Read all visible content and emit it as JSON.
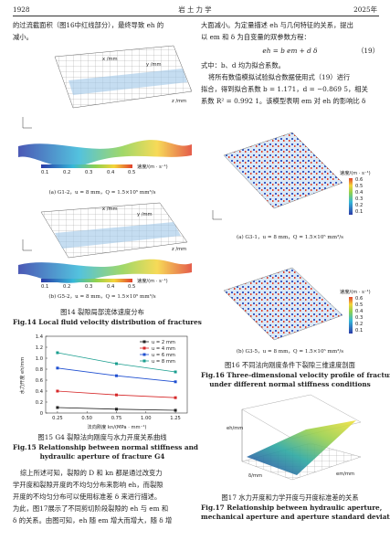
{
  "header": {
    "page": "1928",
    "journal": "岩 土 力 学",
    "year": "2025年"
  },
  "left_text": [
    "的过流截面积（图16中红线部分），最终导致 eh 的",
    "减小。"
  ],
  "fig14": {
    "sub_a": "(a) G1-2，u = 8 mm，Q = 1.5×10⁵ mm³/s",
    "sub_b": "(b) G5-2，u = 8 mm，Q = 1.5×10⁵ mm³/s",
    "axis_x": "x /mm",
    "axis_y": "y /mm",
    "axis_z": "z /mm",
    "colorbar_ticks": [
      "0.1",
      "0.2",
      "0.3",
      "0.4",
      "0.5"
    ],
    "colorbar_label": "速度/(m · s⁻¹)",
    "caption_cn": "图14 裂隙局部流体速度分布",
    "caption_en": "Fig.14 Local fluid velocity distribution of fractures"
  },
  "chart_data": {
    "type": "line",
    "x": [
      0.25,
      0.75,
      1.25
    ],
    "series": [
      {
        "name": "u = 2 mm",
        "color": "#222222",
        "values": [
          0.1,
          0.07,
          0.05
        ]
      },
      {
        "name": "u = 4 mm",
        "color": "#d62728",
        "values": [
          0.4,
          0.33,
          0.28
        ]
      },
      {
        "name": "u = 6 mm",
        "color": "#1f4fd1",
        "values": [
          0.82,
          0.68,
          0.57
        ]
      },
      {
        "name": "u = 8 mm",
        "color": "#1a9e8f",
        "values": [
          1.1,
          0.9,
          0.75
        ]
      }
    ],
    "x_label": "法向刚度 kn/(MPa · mm⁻¹)",
    "y_label": "水力开度 eh/mm",
    "xlim": [
      0.15,
      1.35
    ],
    "xticks": [
      0.25,
      {
        "value": 0.5,
        "label": "0.50"
      },
      0.75,
      {
        "value": 1,
        "label": "1.00"
      },
      1.25
    ],
    "ylim": [
      0,
      1.4
    ],
    "yticks": [
      0,
      0.2,
      0.4,
      0.6,
      0.8,
      {
        "value": 1,
        "label": "1.0"
      },
      1.2,
      1.4
    ],
    "legend": "upper right"
  },
  "fig15": {
    "caption_cn": "图15 G4 裂隙法向刚度与水力开度关系曲线",
    "caption_en": [
      "Fig.15 Relationship between normal stiffness and",
      "hydraulic aperture of fracture G4"
    ]
  },
  "paragraph": [
    "综上所述可知，裂隙的 D 和 kn 都是通过改变力",
    "学开度和裂隙开度的不均匀分布来影响 eh，而裂隙",
    "开度的不均匀分布可以使用标准差 δ 来进行描述。",
    "为此，图17展示了不同剪切阶段裂隙的 eh 与 em 和",
    "δ 的关系。由图可知，eh 随 em 增大而增大，随 δ 增"
  ],
  "right_text": [
    "大面减小。为定量描述 eh 与几何特征的关系，提出",
    "以 em 和 δ 为自变量的双参数方程："
  ],
  "equation": "eh = b em + d δ",
  "equation_number": "（19）",
  "right_text2": [
    "式中：b、d 均为拟合系数。",
    "将所有数值模拟试验拟合数据使用式（19）进行",
    "拟合，得到拟合系数 b = 1.171，d = −0.869 5，相关",
    "系数 R² = 0.992 1。该模型表明 em 对 eh 的影响比 δ"
  ],
  "fig16": {
    "sub_a": "(a) G3-1，u = 8 mm，Q = 1.5×10⁵ mm³/s",
    "sub_b": "(b) G3-5，u = 8 mm，Q = 1.5×10⁵ mm³/s",
    "colorbar_label": "速度/(m · s⁻¹)",
    "colorbar_ticks": [
      "0.6",
      "0.5",
      "0.4",
      "0.3",
      "0.2",
      "0.1"
    ],
    "caption_cn": "图16 不同法向刚度条件下裂隙三维速度剖面",
    "caption_en": [
      "Fig.16 Three-dimensional velocity profile of fracture",
      "under different normal stiffness conditions"
    ]
  },
  "fig17": {
    "axis_z": "eh/mm",
    "axis_x": "δ/mm",
    "axis_y": "em/mm",
    "caption_cn": "图17 水力开度和力学开度与开度标准差的关系",
    "caption_en": [
      "Fig.17 Relationship between hydraulic aperture,",
      "mechanical aperture and aperture standard deviation"
    ]
  }
}
